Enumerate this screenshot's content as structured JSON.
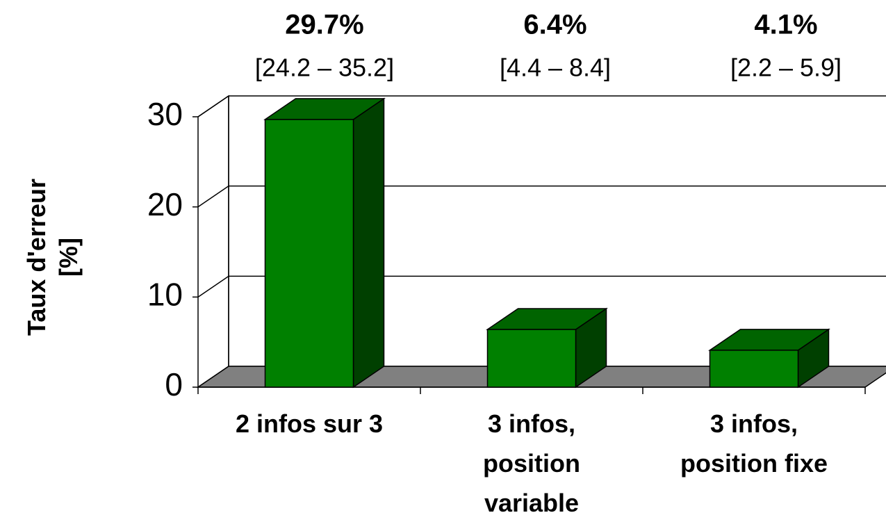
{
  "chart_data": {
    "type": "bar3d",
    "y_label": "Taux d'erreur\n[%]",
    "categories": [
      "2 infos sur 3",
      "3 infos,\nposition\nvariable",
      "3 infos,\nposition fixe"
    ],
    "values": [
      29.7,
      6.4,
      4.1
    ],
    "value_labels": [
      "29.7%",
      "6.4%",
      "4.1%"
    ],
    "intervals": [
      "[24.2 – 35.2]",
      "[4.4 – 8.4]",
      "[2.2 – 5.9]"
    ],
    "color": "#008000",
    "ylim": [
      0,
      30
    ],
    "yticks": [
      0,
      10,
      20,
      30
    ],
    "grid": true
  }
}
